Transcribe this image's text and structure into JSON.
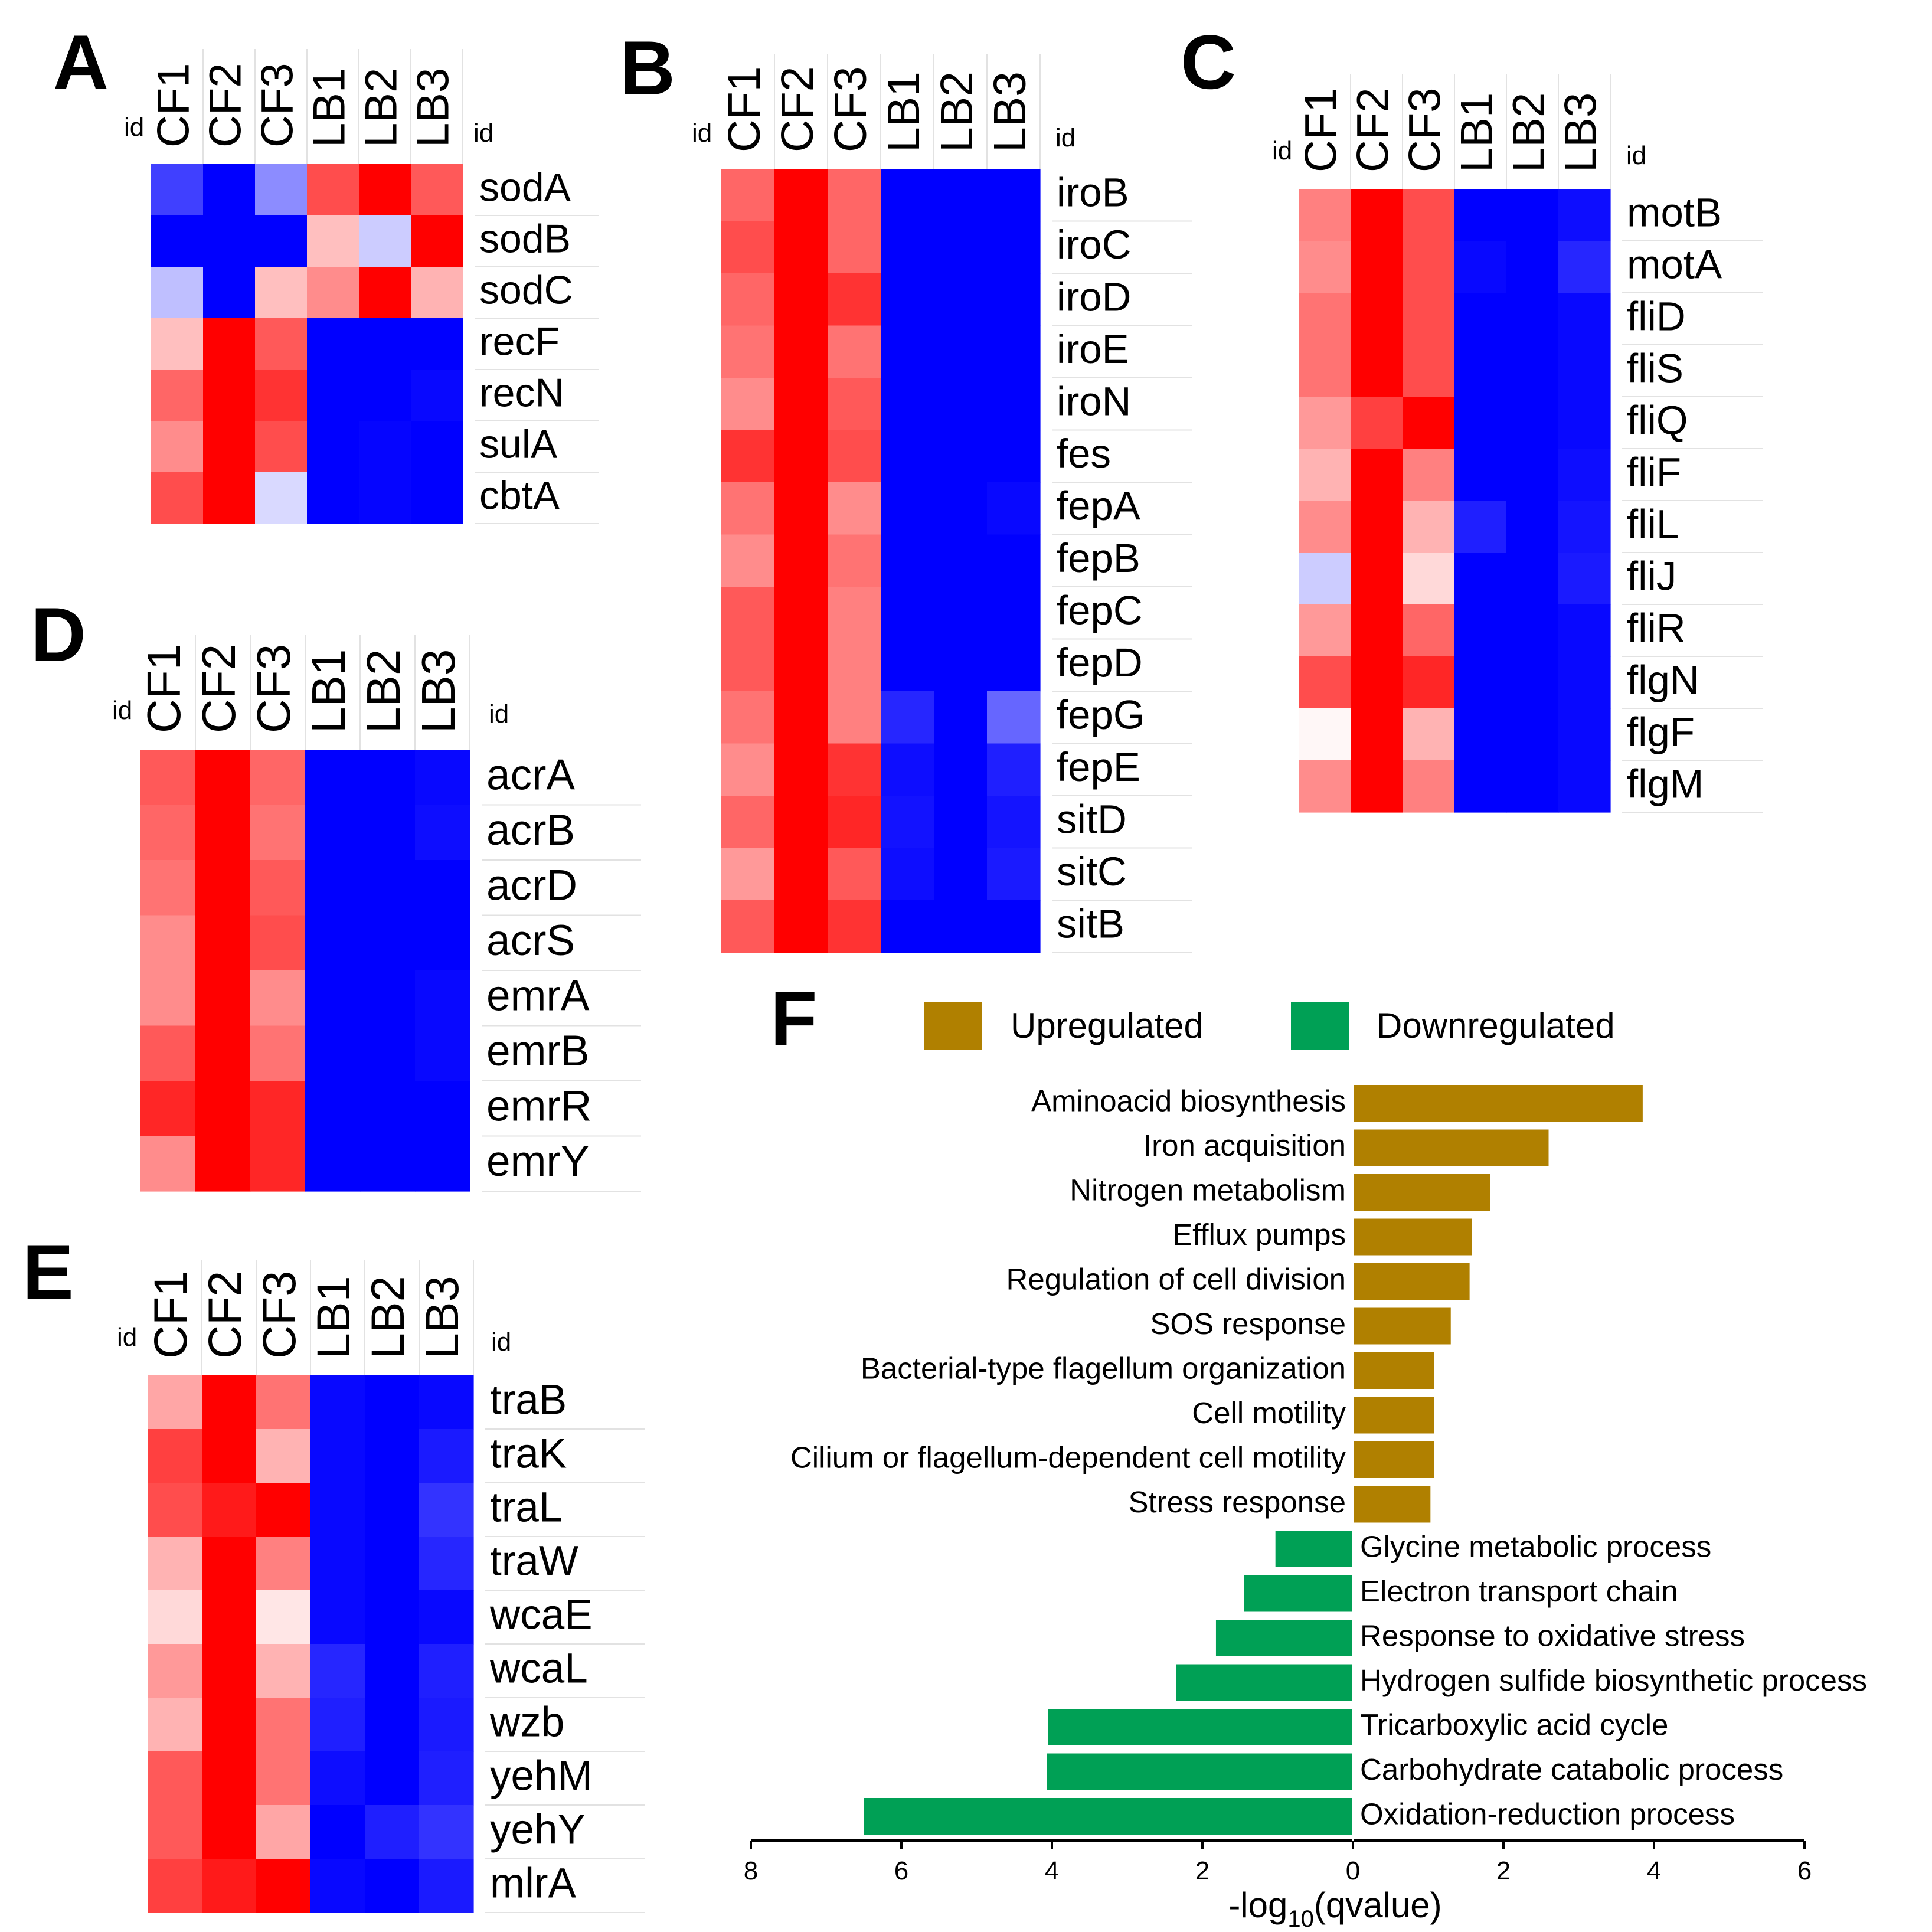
{
  "heatmap_colors": {
    "low": "#0000ff",
    "mid": "#ffffff",
    "high": "#ff0000"
  },
  "bar_colors": {
    "up": "#b08000",
    "down": "#00a055"
  },
  "chart_data": [
    {
      "type": "heatmap",
      "panel": "A",
      "id_label": "id",
      "columns": [
        "CF1",
        "CF2",
        "CF3",
        "LB1",
        "LB2",
        "LB3"
      ],
      "rows": [
        "sodA",
        "sodB",
        "sodC",
        "recF",
        "recN",
        "sulA",
        "cbtA"
      ],
      "values": [
        [
          -0.75,
          -1,
          -0.45,
          0.7,
          1,
          0.65
        ],
        [
          -1,
          -1,
          -1,
          0.25,
          -0.2,
          1
        ],
        [
          -0.25,
          -1,
          0.25,
          0.45,
          1,
          0.3
        ],
        [
          0.25,
          1,
          0.65,
          -1,
          -1,
          -1
        ],
        [
          0.6,
          1,
          0.8,
          -1,
          -1,
          -0.97
        ],
        [
          0.45,
          1,
          0.7,
          -1,
          -0.98,
          -1
        ],
        [
          0.7,
          1,
          -0.15,
          -1,
          -0.98,
          -1
        ]
      ]
    },
    {
      "type": "heatmap",
      "panel": "B",
      "id_label": "id",
      "columns": [
        "CF1",
        "CF2",
        "CF3",
        "LB1",
        "LB2",
        "LB3"
      ],
      "rows": [
        "iroB",
        "iroC",
        "iroD",
        "iroE",
        "iroN",
        "fes",
        "fepA",
        "fepB",
        "fepC",
        "fepD",
        "fepG",
        "fepE",
        "sitD",
        "sitC",
        "sitB"
      ],
      "values": [
        [
          0.6,
          1,
          0.6,
          -1,
          -1,
          -1
        ],
        [
          0.7,
          1,
          0.6,
          -1,
          -1,
          -1
        ],
        [
          0.6,
          1,
          0.8,
          -1,
          -1,
          -1
        ],
        [
          0.55,
          1,
          0.55,
          -1,
          -1,
          -1
        ],
        [
          0.45,
          1,
          0.65,
          -1,
          -1,
          -1
        ],
        [
          0.8,
          1,
          0.7,
          -1,
          -1,
          -1
        ],
        [
          0.55,
          1,
          0.45,
          -1,
          -1,
          -0.97
        ],
        [
          0.45,
          1,
          0.55,
          -1,
          -1,
          -1
        ],
        [
          0.65,
          1,
          0.5,
          -1,
          -1,
          -1
        ],
        [
          0.65,
          1,
          0.5,
          -1,
          -1,
          -1
        ],
        [
          0.55,
          1,
          0.5,
          -0.85,
          -1,
          -0.6
        ],
        [
          0.45,
          1,
          0.8,
          -0.95,
          -1,
          -0.88
        ],
        [
          0.6,
          1,
          0.85,
          -0.93,
          -1,
          -0.92
        ],
        [
          0.4,
          1,
          0.65,
          -0.95,
          -1,
          -0.9
        ],
        [
          0.65,
          1,
          0.8,
          -1,
          -1,
          -1
        ]
      ]
    },
    {
      "type": "heatmap",
      "panel": "C",
      "id_label": "id",
      "columns": [
        "CF1",
        "CF2",
        "CF3",
        "LB1",
        "LB2",
        "LB3"
      ],
      "rows": [
        "motB",
        "motA",
        "fliD",
        "fliS",
        "fliQ",
        "fliF",
        "fliL",
        "fliJ",
        "fliR",
        "flgN",
        "flgF",
        "flgM"
      ],
      "values": [
        [
          0.5,
          1,
          0.7,
          -1,
          -1,
          -0.95
        ],
        [
          0.45,
          1,
          0.7,
          -0.97,
          -1,
          -0.85
        ],
        [
          0.55,
          1,
          0.7,
          -1,
          -1,
          -0.97
        ],
        [
          0.55,
          1,
          0.7,
          -1,
          -1,
          -0.97
        ],
        [
          0.4,
          0.75,
          1,
          -1,
          -1,
          -0.97
        ],
        [
          0.3,
          1,
          0.5,
          -1,
          -1,
          -0.95
        ],
        [
          0.45,
          1,
          0.3,
          -0.88,
          -1,
          -0.92
        ],
        [
          -0.2,
          1,
          0.15,
          -1,
          -1,
          -0.9
        ],
        [
          0.4,
          1,
          0.6,
          -1,
          -1,
          -0.97
        ],
        [
          0.7,
          1,
          0.85,
          -1,
          -1,
          -0.97
        ],
        [
          0.03,
          1,
          0.3,
          -1,
          -1,
          -0.97
        ],
        [
          0.45,
          1,
          0.5,
          -1,
          -1,
          -0.97
        ]
      ]
    },
    {
      "type": "heatmap",
      "panel": "D",
      "id_label": "id",
      "columns": [
        "CF1",
        "CF2",
        "CF3",
        "LB1",
        "LB2",
        "LB3"
      ],
      "rows": [
        "acrA",
        "acrB",
        "acrD",
        "acrS",
        "emrA",
        "emrB",
        "emrR",
        "emrY"
      ],
      "values": [
        [
          0.65,
          1,
          0.6,
          -1,
          -1,
          -0.97
        ],
        [
          0.6,
          1,
          0.55,
          -1,
          -1,
          -0.95
        ],
        [
          0.55,
          1,
          0.65,
          -1,
          -1,
          -1
        ],
        [
          0.45,
          1,
          0.7,
          -1,
          -1,
          -1
        ],
        [
          0.45,
          1,
          0.45,
          -1,
          -1,
          -0.97
        ],
        [
          0.65,
          1,
          0.55,
          -1,
          -1,
          -0.97
        ],
        [
          0.85,
          1,
          0.85,
          -1,
          -1,
          -1
        ],
        [
          0.45,
          1,
          0.85,
          -1,
          -1,
          -1
        ]
      ]
    },
    {
      "type": "heatmap",
      "panel": "E",
      "id_label": "id",
      "columns": [
        "CF1",
        "CF2",
        "CF3",
        "LB1",
        "LB2",
        "LB3"
      ],
      "rows": [
        "traB",
        "traK",
        "traL",
        "traW",
        "wcaE",
        "wcaL",
        "wzb",
        "yehM",
        "yehY",
        "mlrA"
      ],
      "values": [
        [
          0.35,
          1,
          0.55,
          -0.97,
          -1,
          -0.97
        ],
        [
          0.75,
          1,
          0.3,
          -0.97,
          -1,
          -0.9
        ],
        [
          0.7,
          0.9,
          1,
          -0.97,
          -1,
          -0.8
        ],
        [
          0.3,
          1,
          0.5,
          -0.97,
          -1,
          -0.85
        ],
        [
          0.15,
          1,
          0.1,
          -0.97,
          -1,
          -0.97
        ],
        [
          0.4,
          1,
          0.3,
          -0.85,
          -1,
          -0.88
        ],
        [
          0.3,
          1,
          0.55,
          -0.88,
          -1,
          -0.9
        ],
        [
          0.65,
          1,
          0.55,
          -0.95,
          -1,
          -0.88
        ],
        [
          0.65,
          1,
          0.35,
          -1,
          -0.88,
          -0.8
        ],
        [
          0.75,
          0.9,
          1,
          -0.97,
          -1,
          -0.9
        ]
      ]
    },
    {
      "type": "bar",
      "panel": "F",
      "orientation": "horizontal",
      "legend": [
        "Upregulated",
        "Downregulated"
      ],
      "xlabel": "-log10(qvalue)",
      "xlabel_main": "-log",
      "xlabel_sub": "10",
      "xlabel_tail": "(qvalue)",
      "xlim": [
        -8,
        6
      ],
      "xticks": [
        -8,
        -6,
        -4,
        -2,
        0,
        2,
        4,
        6
      ],
      "xtick_labels": [
        "8",
        "6",
        "4",
        "2",
        "0",
        "2",
        "4",
        "6"
      ],
      "categories": [
        "Aminoacid biosynthesis",
        "Iron acquisition",
        "Nitrogen metabolism",
        "Efflux pumps",
        "Regulation of cell division",
        "SOS response",
        "Bacterial-type flagellum organization",
        "Cell motility",
        "Cilium or flagellum-dependent cell motility",
        "Stress response",
        "Glycine metabolic process",
        "Electron transport chain",
        "Response to oxidative stress",
        "Hydrogen sulfide biosynthetic process",
        "Tricarboxylic acid cycle",
        "Carbohydrate catabolic process",
        "Oxidation-reduction process"
      ],
      "groups": [
        "up",
        "up",
        "up",
        "up",
        "up",
        "up",
        "up",
        "up",
        "up",
        "up",
        "down",
        "down",
        "down",
        "down",
        "down",
        "down",
        "down"
      ],
      "values": [
        3.85,
        2.6,
        1.82,
        1.58,
        1.55,
        1.3,
        1.08,
        1.08,
        1.08,
        1.03,
        -1.03,
        -1.45,
        -1.82,
        -2.35,
        -4.05,
        -4.07,
        -6.5
      ]
    }
  ]
}
